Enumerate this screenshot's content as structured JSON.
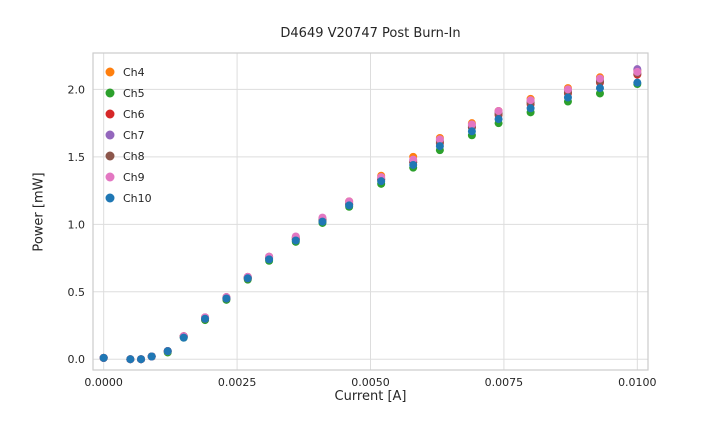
{
  "chart_data": {
    "type": "scatter",
    "title": "D4649 V20747 Post Burn-In",
    "xlabel": "Current [A]",
    "ylabel": "Power [mW]",
    "xlim": [
      -0.0002,
      0.0102
    ],
    "ylim": [
      -0.08,
      2.27
    ],
    "grid": true,
    "legend_position": "upper left",
    "x_ticks": {
      "values": [
        0.0,
        0.0025,
        0.005,
        0.0075,
        0.01
      ],
      "labels": [
        "0.0000",
        "0.0025",
        "0.0050",
        "0.0075",
        "0.0100"
      ]
    },
    "y_ticks": {
      "values": [
        0.0,
        0.5,
        1.0,
        1.5,
        2.0
      ],
      "labels": [
        "0.0",
        "0.5",
        "1.0",
        "1.5",
        "2.0"
      ]
    },
    "x": [
      0.0,
      0.0005,
      0.0007,
      0.0009,
      0.0012,
      0.0015,
      0.0019,
      0.0023,
      0.0027,
      0.0031,
      0.0036,
      0.0041,
      0.0046,
      0.0052,
      0.0058,
      0.0063,
      0.0069,
      0.0074,
      0.008,
      0.0087,
      0.0093,
      0.01
    ],
    "series": [
      {
        "name": "Ch4",
        "color": "#ff7f0e",
        "y": [
          0.01,
          0.0,
          0.0,
          0.02,
          0.06,
          0.17,
          0.31,
          0.46,
          0.61,
          0.76,
          0.9,
          1.04,
          1.17,
          1.36,
          1.5,
          1.64,
          1.75,
          1.84,
          1.93,
          2.01,
          2.09,
          2.14
        ]
      },
      {
        "name": "Ch5",
        "color": "#2ca02c",
        "y": [
          0.01,
          0.0,
          0.0,
          0.02,
          0.05,
          0.16,
          0.29,
          0.44,
          0.59,
          0.73,
          0.87,
          1.01,
          1.13,
          1.3,
          1.42,
          1.55,
          1.66,
          1.75,
          1.83,
          1.91,
          1.97,
          2.04
        ]
      },
      {
        "name": "Ch6",
        "color": "#d62728",
        "y": [
          0.01,
          0.0,
          0.0,
          0.02,
          0.06,
          0.17,
          0.3,
          0.45,
          0.6,
          0.75,
          0.89,
          1.03,
          1.15,
          1.33,
          1.46,
          1.6,
          1.72,
          1.81,
          1.89,
          1.97,
          2.05,
          2.11
        ]
      },
      {
        "name": "Ch7",
        "color": "#9467bd",
        "y": [
          0.01,
          0.0,
          0.0,
          0.02,
          0.06,
          0.17,
          0.31,
          0.46,
          0.61,
          0.76,
          0.9,
          1.04,
          1.16,
          1.34,
          1.47,
          1.62,
          1.73,
          1.83,
          1.91,
          1.99,
          2.07,
          2.15
        ]
      },
      {
        "name": "Ch8",
        "color": "#8c564b",
        "y": [
          0.01,
          0.0,
          0.0,
          0.02,
          0.06,
          0.17,
          0.3,
          0.45,
          0.6,
          0.75,
          0.89,
          1.03,
          1.15,
          1.33,
          1.46,
          1.61,
          1.72,
          1.82,
          1.9,
          1.98,
          2.06,
          2.12
        ]
      },
      {
        "name": "Ch9",
        "color": "#e377c2",
        "y": [
          0.01,
          0.0,
          0.0,
          0.02,
          0.06,
          0.17,
          0.31,
          0.46,
          0.61,
          0.76,
          0.91,
          1.05,
          1.17,
          1.35,
          1.48,
          1.63,
          1.74,
          1.84,
          1.92,
          2.0,
          2.08,
          2.13
        ]
      },
      {
        "name": "Ch10",
        "color": "#1f77b4",
        "y": [
          0.01,
          0.0,
          0.0,
          0.02,
          0.06,
          0.16,
          0.3,
          0.45,
          0.6,
          0.74,
          0.88,
          1.02,
          1.14,
          1.32,
          1.44,
          1.58,
          1.69,
          1.78,
          1.86,
          1.94,
          2.01,
          2.05
        ]
      }
    ],
    "style": {
      "grid_color": "#dddddd",
      "spine_color": "#cccccc",
      "marker_radius": 4
    }
  }
}
